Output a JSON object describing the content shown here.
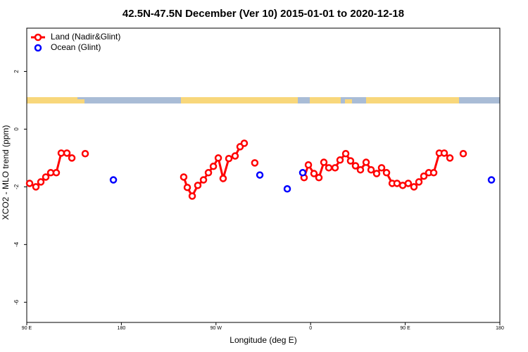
{
  "chart_data": {
    "type": "line",
    "title": "42.5N-47.5N December (Ver 10)   2015-01-01 to 2020-12-18",
    "x_label": "Longitude (deg E)",
    "y_label": "XCO2 - MLO trend (ppm)",
    "xlim": [
      90,
      540
    ],
    "ylim": [
      -6.7,
      3.5
    ],
    "xticks": [
      {
        "value": 90,
        "label": "90 E"
      },
      180,
      {
        "value": 270,
        "label": "90 W"
      },
      {
        "value": 360,
        "label": "0"
      },
      {
        "value": 450,
        "label": "90 E"
      },
      {
        "value": 540,
        "label": "180"
      }
    ],
    "yticks": [
      -6,
      -4,
      -2,
      0,
      2
    ],
    "legend": "top-left",
    "series": [
      {
        "name": "Land (Nadir&Glint)",
        "color": "#ff0000",
        "style": "lines+points",
        "x": [
          92.7,
          98.7,
          103.4,
          108.1,
          112.8,
          118.1,
          122.8,
          128.2,
          132.9,
          null,
          145.6,
          null,
          239.3,
          242.7,
          247.4,
          252.7,
          258.1,
          262.8,
          267.5,
          272.2,
          276.8,
          282.2,
          288.2,
          292.9,
          296.9,
          null,
          306.9,
          null,
          353.8,
          357.9,
          363.2,
          367.9,
          372.6,
          377.3,
          383.3,
          388.0,
          393.4,
          398.0,
          402.7,
          407.4,
          412.8,
          417.5,
          422.8,
          427.5,
          432.2,
          437.6,
          442.2,
          447.6,
          452.9,
          458.3,
          463.0,
          467.7,
          472.4,
          477.1,
          482.4,
          487.1,
          492.5,
          null,
          505.2
        ],
        "values": [
          -1.88,
          -2.0,
          -1.83,
          -1.66,
          -1.51,
          -1.51,
          -0.83,
          -0.83,
          -1.0,
          null,
          -0.85,
          null,
          -1.66,
          -2.02,
          -2.32,
          -1.95,
          -1.76,
          -1.51,
          -1.29,
          -1.0,
          -1.71,
          -1.02,
          -0.93,
          -0.61,
          -0.49,
          null,
          -1.17,
          null,
          -1.68,
          -1.24,
          -1.54,
          -1.68,
          -1.15,
          -1.34,
          -1.34,
          -1.07,
          -0.85,
          -1.1,
          -1.27,
          -1.41,
          -1.15,
          -1.41,
          -1.54,
          -1.34,
          -1.51,
          -1.88,
          -1.88,
          -1.95,
          -1.88,
          -2.0,
          -1.83,
          -1.63,
          -1.51,
          -1.51,
          -0.83,
          -0.83,
          -1.0,
          null,
          -0.85
        ]
      },
      {
        "name": "Ocean (Glint)",
        "color": "#0000ff",
        "style": "points",
        "x": [
          172.4,
          311.7,
          337.8,
          352.5,
          532.0
        ],
        "values": [
          -1.76,
          -1.59,
          -2.07,
          -1.51,
          -1.76
        ]
      }
    ]
  }
}
